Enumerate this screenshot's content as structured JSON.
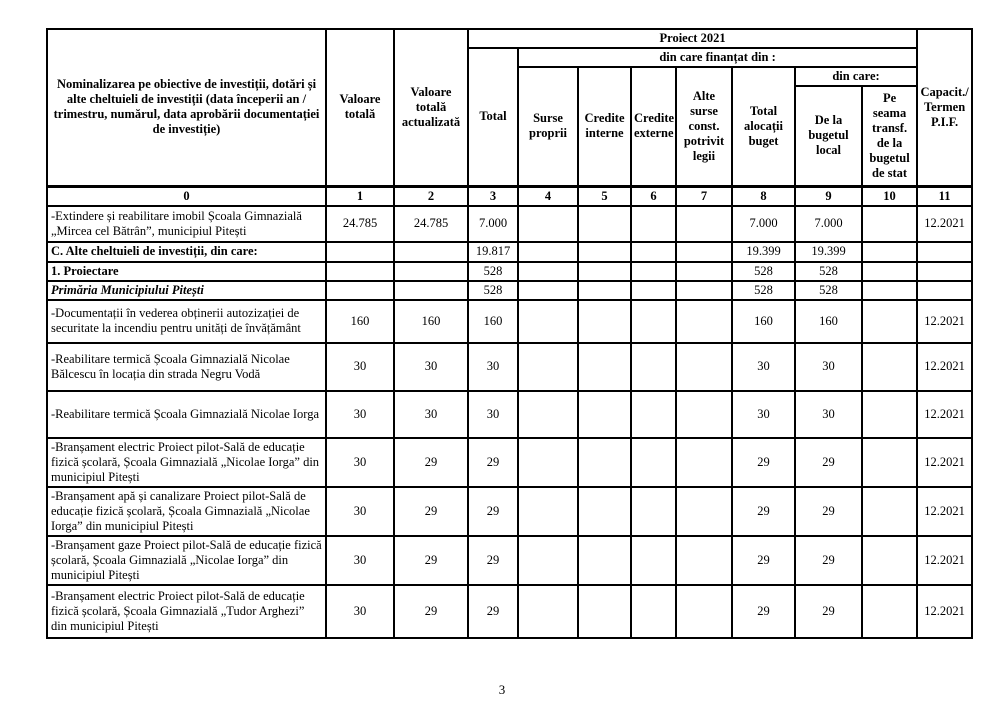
{
  "page": {
    "number": "3"
  },
  "colors": {
    "border": "#000000",
    "background": "#ffffff",
    "text": "#000000"
  },
  "table": {
    "header": {
      "nominalizarea": "Nominalizarea pe obiective de investiții, dotări și alte cheltuieli de investiții (data începerii an / trimestru,  numărul, data aprobării documentației de investiție)",
      "valoare_totala": "Valoare totală",
      "valoare_totala_actualizata": "Valoare totală actualizată",
      "proiect_2021": "Proiect 2021",
      "din_care_finantat": "din care finanțat din :",
      "total": "Total",
      "surse_proprii": "Surse proprii",
      "credite_interne": "Credite interne",
      "credite_externe": "Credite externe",
      "alte_surse": "Alte surse const. potrivit legii",
      "total_alocatii": "Total alocații buget",
      "din_care": "din care:",
      "de_la_bugetul_local": "De la bugetul local",
      "pe_seama_transf": "Pe seama transf. de la bugetul de stat",
      "capacit_termen": "Capacit./ Termen P.I.F.",
      "index_row": [
        "0",
        "1",
        "2",
        "3",
        "4",
        "5",
        "6",
        "7",
        "8",
        "9",
        "10",
        "11"
      ]
    },
    "rows": [
      {
        "label": "-Extindere și reabilitare imobil Școala Gimnazială „Mircea cel Bătrân”, municipiul Pitești",
        "style": "normal",
        "values": [
          "24.785",
          "24.785",
          "7.000",
          "",
          "",
          "",
          "",
          "7.000",
          "7.000",
          "",
          "12.2021"
        ]
      },
      {
        "label": "C. Alte cheltuieli de investiții, din care:",
        "style": "bold",
        "values": [
          "",
          "",
          "19.817",
          "",
          "",
          "",
          "",
          "19.399",
          "19.399",
          "",
          ""
        ]
      },
      {
        "label": "1. Proiectare",
        "style": "bold",
        "values": [
          "",
          "",
          "528",
          "",
          "",
          "",
          "",
          "528",
          "528",
          "",
          ""
        ]
      },
      {
        "label": "Primăria Municipiului Pitești",
        "style": "bold-italic",
        "values": [
          "",
          "",
          "528",
          "",
          "",
          "",
          "",
          "528",
          "528",
          "",
          ""
        ]
      },
      {
        "label": "-Documentații în vederea obținerii autozizației de securitate la incendiu pentru unități de învățământ",
        "style": "normal",
        "values": [
          "160",
          "160",
          "160",
          "",
          "",
          "",
          "",
          "160",
          "160",
          "",
          "12.2021"
        ]
      },
      {
        "label": "-Reabilitare termică Școala Gimnazială Nicolae Bălcescu în locația din strada Negru Vodă",
        "style": "normal",
        "values": [
          "30",
          "30",
          "30",
          "",
          "",
          "",
          "",
          "30",
          "30",
          "",
          "12.2021"
        ]
      },
      {
        "label": "-Reabilitare termică Școala Gimnazială Nicolae Iorga",
        "style": "normal",
        "values": [
          "30",
          "30",
          "30",
          "",
          "",
          "",
          "",
          "30",
          "30",
          "",
          "12.2021"
        ]
      },
      {
        "label": "-Branșament electric Proiect pilot-Sală de educație fizică școlară, Școala Gimnazială „Nicolae Iorga” din municipiul Pitești",
        "style": "normal",
        "values": [
          "30",
          "29",
          "29",
          "",
          "",
          "",
          "",
          "29",
          "29",
          "",
          "12.2021"
        ]
      },
      {
        "label": "-Branșament apă și canalizare Proiect pilot-Sală de educație fizică școlară, Școala Gimnazială „Nicolae Iorga” din municipiul Pitești",
        "style": "normal",
        "values": [
          "30",
          "29",
          "29",
          "",
          "",
          "",
          "",
          "29",
          "29",
          "",
          "12.2021"
        ]
      },
      {
        "label": "-Branșament gaze Proiect pilot-Sală de educație fizică școlară, Școala Gimnazială „Nicolae Iorga” din municipiul Pitești",
        "style": "normal",
        "values": [
          "30",
          "29",
          "29",
          "",
          "",
          "",
          "",
          "29",
          "29",
          "",
          "12.2021"
        ]
      },
      {
        "label": "-Branșament electric Proiect pilot-Sală de educație fizică școlară, Școala Gimnazială „Tudor Arghezi” din municipiul Pitești",
        "style": "normal",
        "values": [
          "30",
          "29",
          "29",
          "",
          "",
          "",
          "",
          "29",
          "29",
          "",
          "12.2021"
        ]
      }
    ]
  }
}
